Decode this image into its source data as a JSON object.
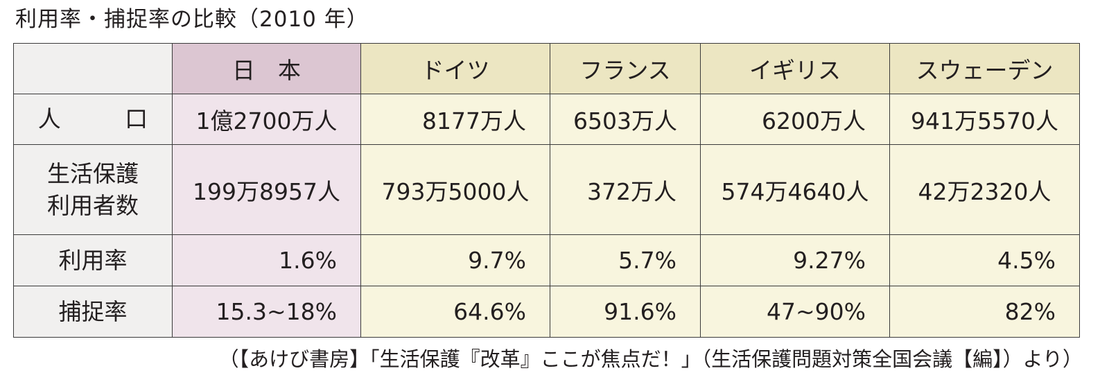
{
  "title": "利用率・捕捉率の比較（2010 年）",
  "table": {
    "headers": [
      "",
      "日　本",
      "ドイツ",
      "フランス",
      "イギリス",
      "スウェーデン"
    ],
    "rows": [
      {
        "label": "人　口",
        "values": [
          "1億2700万人",
          "8177万人",
          "6503万人",
          "6200万人",
          "941万5570人"
        ]
      },
      {
        "label_line1": "生活保護",
        "label_line2": "利用者数",
        "values": [
          "199万8957人",
          "793万5000人",
          "372万人",
          "574万4640人",
          "42万2320人"
        ]
      },
      {
        "label": "利用率",
        "values": [
          "1.6%",
          "9.7%",
          "5.7%",
          "9.27%",
          "4.5%"
        ]
      },
      {
        "label": "捕捉率",
        "values": [
          "15.3~18%",
          "64.6%",
          "91.6%",
          "47~90%",
          "82%"
        ]
      }
    ]
  },
  "source": "（【あけび書房】「生活保護『改革』ここが焦点だ！」（生活保護問題対策全国会議【編】）より）",
  "colors": {
    "japan_header": "#dcc6d2",
    "japan_cell": "#f0e4eb",
    "others_header": "#ece6c2",
    "others_cell": "#f8f5de",
    "label_cell": "#f1f0ef"
  }
}
